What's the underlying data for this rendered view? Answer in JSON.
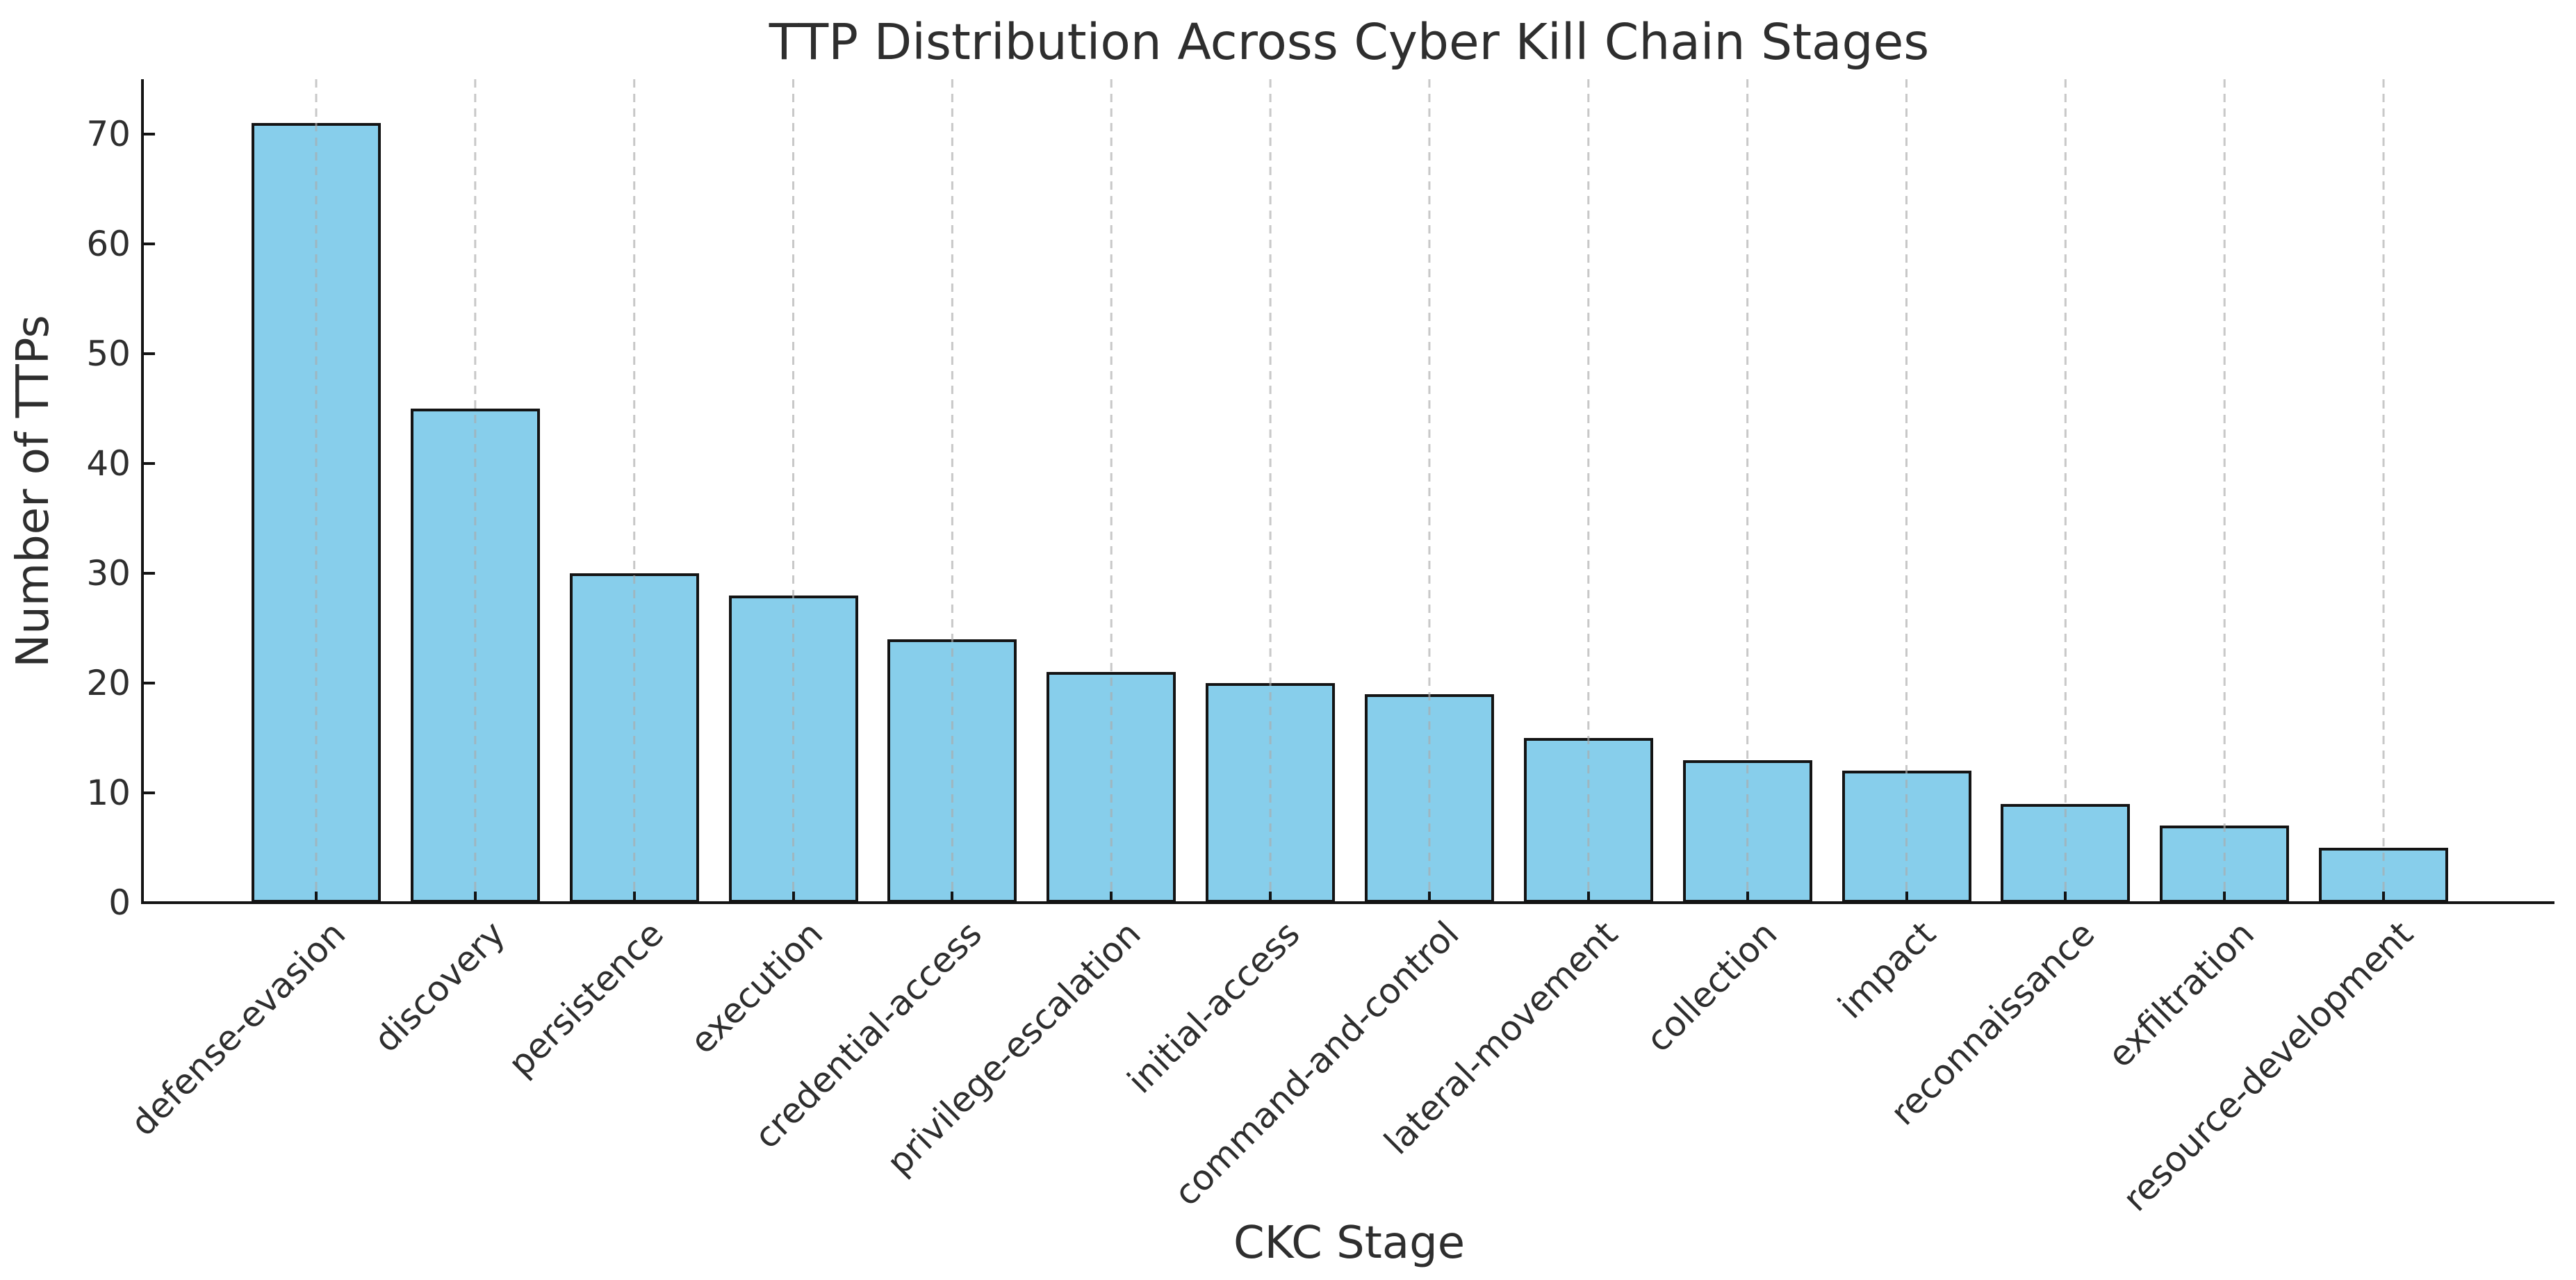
{
  "chart_data": {
    "type": "bar",
    "title": "TTP Distribution Across Cyber Kill Chain Stages",
    "xlabel": "CKC Stage",
    "ylabel": "Number of TTPs",
    "categories": [
      "defense-evasion",
      "discovery",
      "persistence",
      "execution",
      "credential-access",
      "privilege-escalation",
      "initial-access",
      "command-and-control",
      "lateral-movement",
      "collection",
      "impact",
      "reconnaissance",
      "exfiltration",
      "resource-development"
    ],
    "values": [
      71,
      45,
      30,
      28,
      24,
      21,
      20,
      19,
      15,
      13,
      12,
      9,
      7,
      5
    ],
    "yticks": [
      0,
      10,
      20,
      30,
      40,
      50,
      60,
      70
    ],
    "ylim": [
      0,
      75
    ],
    "grid": "vertical-dashed",
    "legend_position": "none",
    "colors": {
      "bar_fill": "#87CEEB",
      "bar_edge": "#141414",
      "grid_line": "rgba(170,170,170,0.65)",
      "spine": "#141414",
      "text": "#2e2e2e",
      "background": "#ffffff"
    }
  }
}
